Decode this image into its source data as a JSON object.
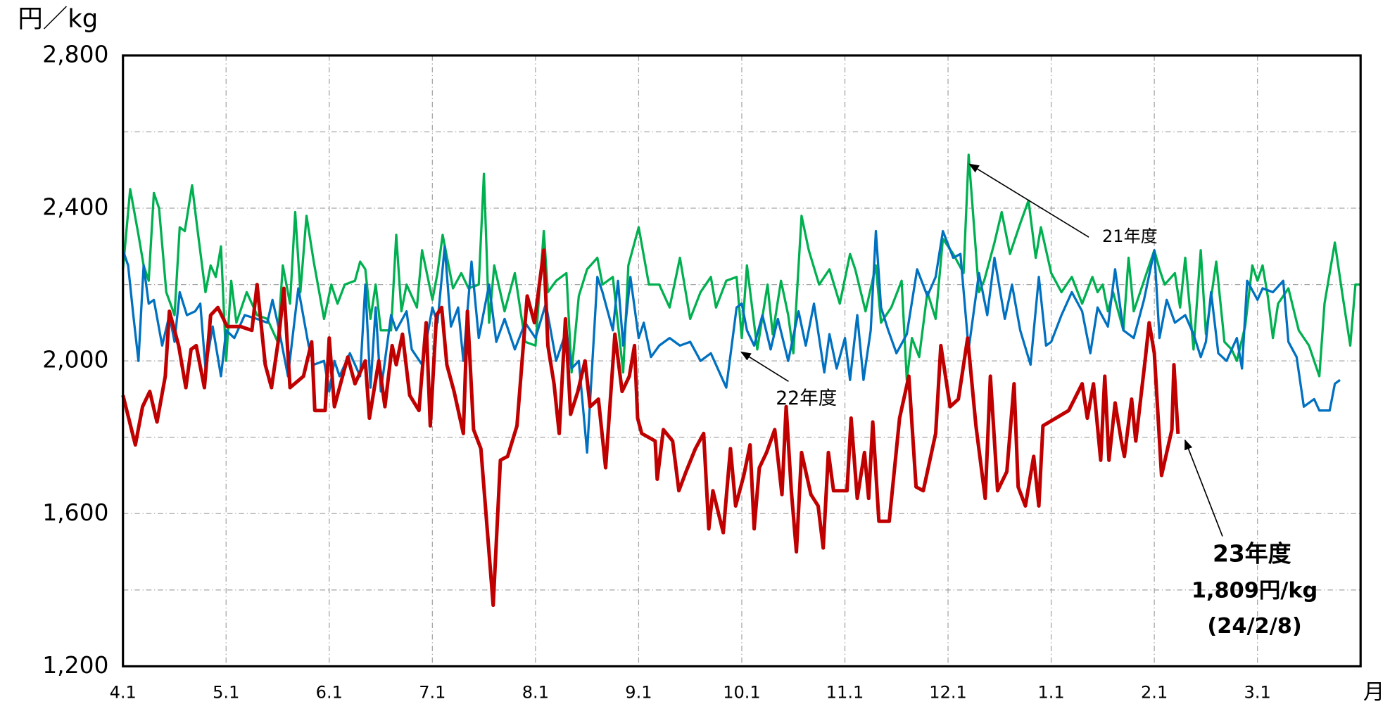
{
  "chart_data": {
    "type": "line",
    "y_label": "円／kg",
    "x_label": "月",
    "xlim": [
      0,
      12
    ],
    "xticks": [
      {
        "value": 0,
        "label": "4.1"
      },
      {
        "value": 1,
        "label": "5.1"
      },
      {
        "value": 2,
        "label": "6.1"
      },
      {
        "value": 3,
        "label": "7.1"
      },
      {
        "value": 4,
        "label": "8.1"
      },
      {
        "value": 5,
        "label": "9.1"
      },
      {
        "value": 6,
        "label": "10.1"
      },
      {
        "value": 7,
        "label": "11.1"
      },
      {
        "value": 8,
        "label": "12.1"
      },
      {
        "value": 9,
        "label": "1.1"
      },
      {
        "value": 10,
        "label": "2.1"
      },
      {
        "value": 11,
        "label": "3.1"
      }
    ],
    "ylim": [
      1200,
      2800
    ],
    "yticks": [
      {
        "value": 1200,
        "label": "1,200"
      },
      {
        "value": 1600,
        "label": "1,600"
      },
      {
        "value": 2000,
        "label": "2,000"
      },
      {
        "value": 2400,
        "label": "2,400"
      },
      {
        "value": 2800,
        "label": "2,800"
      }
    ],
    "minor_yticks": [
      1400,
      1800,
      2200,
      2600
    ],
    "grid": true,
    "series": [
      {
        "name": "21年度",
        "color": "#00b050",
        "x": [
          0,
          0.07,
          0.15,
          0.2,
          0.25,
          0.3,
          0.35,
          0.42,
          0.5,
          0.55,
          0.6,
          0.67,
          0.72,
          0.8,
          0.85,
          0.9,
          0.95,
          1.0,
          1.05,
          1.1,
          1.2,
          1.3,
          1.4,
          1.5,
          1.55,
          1.62,
          1.67,
          1.72,
          1.78,
          1.85,
          1.95,
          2.02,
          2.08,
          2.15,
          2.25,
          2.3,
          2.35,
          2.4,
          2.45,
          2.5,
          2.6,
          2.65,
          2.7,
          2.75,
          2.85,
          2.9,
          3.0,
          3.05,
          3.1,
          3.2,
          3.28,
          3.35,
          3.45,
          3.5,
          3.55,
          3.6,
          3.7,
          3.8,
          3.9,
          4.0,
          4.08,
          4.12,
          4.2,
          4.3,
          4.35,
          4.42,
          4.5,
          4.6,
          4.65,
          4.75,
          4.85,
          4.9,
          5.0,
          5.1,
          5.2,
          5.3,
          5.4,
          5.5,
          5.6,
          5.7,
          5.75,
          5.85,
          5.95,
          6.0,
          6.05,
          6.15,
          6.25,
          6.3,
          6.38,
          6.45,
          6.5,
          6.58,
          6.65,
          6.75,
          6.85,
          6.95,
          7.05,
          7.1,
          7.2,
          7.3,
          7.35,
          7.45,
          7.55,
          7.6,
          7.65,
          7.72,
          7.8,
          7.88,
          7.95,
          8.05,
          8.15,
          8.2,
          8.3,
          8.35,
          8.45,
          8.52,
          8.6,
          8.7,
          8.78,
          8.85,
          8.9,
          9.0,
          9.1,
          9.2,
          9.3,
          9.4,
          9.45,
          9.5,
          9.55,
          9.6,
          9.7,
          9.75,
          9.8,
          9.9,
          10.0,
          10.05,
          10.1,
          10.2,
          10.25,
          10.3,
          10.38,
          10.45,
          10.5,
          10.6,
          10.68,
          10.75,
          10.8,
          10.88,
          10.95,
          11.0,
          11.05,
          11.1,
          11.15,
          11.2,
          11.3,
          11.4,
          11.5,
          11.6,
          11.65,
          11.75,
          11.82,
          11.9,
          11.95,
          12.0
        ],
        "values": [
          2240,
          2450,
          2330,
          2250,
          2210,
          2440,
          2400,
          2180,
          2120,
          2350,
          2340,
          2460,
          2350,
          2180,
          2250,
          2220,
          2300,
          2000,
          2210,
          2100,
          2180,
          2120,
          2110,
          2050,
          2250,
          2150,
          2390,
          2180,
          2380,
          2260,
          2110,
          2200,
          2150,
          2200,
          2210,
          2260,
          2240,
          2110,
          2200,
          2080,
          2080,
          2330,
          2130,
          2200,
          2140,
          2290,
          2160,
          2230,
          2330,
          2190,
          2230,
          2190,
          2200,
          2490,
          2100,
          2250,
          2130,
          2230,
          2050,
          2040,
          2340,
          2180,
          2210,
          2230,
          1970,
          2170,
          2240,
          2270,
          2200,
          2220,
          1970,
          2250,
          2350,
          2200,
          2200,
          2140,
          2270,
          2110,
          2180,
          2220,
          2140,
          2210,
          2220,
          2060,
          2250,
          2030,
          2200,
          2070,
          2210,
          2120,
          2020,
          2380,
          2290,
          2200,
          2240,
          2150,
          2280,
          2240,
          2130,
          2250,
          2100,
          2140,
          2210,
          1950,
          2060,
          2010,
          2180,
          2110,
          2320,
          2280,
          2230,
          2540,
          2180,
          2210,
          2310,
          2390,
          2280,
          2360,
          2420,
          2270,
          2350,
          2230,
          2180,
          2220,
          2150,
          2220,
          2180,
          2200,
          2130,
          2180,
          2080,
          2270,
          2130,
          2210,
          2290,
          2240,
          2200,
          2230,
          2140,
          2270,
          2030,
          2290,
          2070,
          2260,
          2050,
          2030,
          2000,
          2090,
          2250,
          2210,
          2250,
          2170,
          2060,
          2150,
          2190,
          2080,
          2040,
          1960,
          2150,
          2310,
          2180,
          2040,
          2200,
          2200
        ]
      },
      {
        "name": "22年度",
        "color": "#0070c0",
        "x": [
          0,
          0.05,
          0.1,
          0.15,
          0.2,
          0.25,
          0.3,
          0.38,
          0.45,
          0.5,
          0.55,
          0.62,
          0.7,
          0.75,
          0.8,
          0.87,
          0.95,
          1.0,
          1.08,
          1.18,
          1.3,
          1.4,
          1.45,
          1.5,
          1.6,
          1.7,
          1.8,
          1.85,
          1.95,
          2.0,
          2.05,
          2.1,
          2.2,
          2.3,
          2.35,
          2.4,
          2.45,
          2.5,
          2.6,
          2.65,
          2.75,
          2.8,
          2.9,
          3.0,
          3.05,
          3.12,
          3.18,
          3.25,
          3.3,
          3.38,
          3.45,
          3.55,
          3.62,
          3.7,
          3.8,
          3.9,
          4.0,
          4.1,
          4.2,
          4.3,
          4.35,
          4.42,
          4.5,
          4.6,
          4.65,
          4.75,
          4.8,
          4.85,
          4.92,
          5.0,
          5.05,
          5.12,
          5.2,
          5.3,
          5.4,
          5.5,
          5.6,
          5.7,
          5.85,
          5.95,
          6.0,
          6.05,
          6.12,
          6.2,
          6.28,
          6.35,
          6.45,
          6.55,
          6.62,
          6.7,
          6.8,
          6.85,
          6.92,
          7.0,
          7.05,
          7.12,
          7.18,
          7.25,
          7.3,
          7.35,
          7.42,
          7.5,
          7.6,
          7.7,
          7.8,
          7.88,
          7.95,
          8.05,
          8.12,
          8.2,
          8.3,
          8.38,
          8.45,
          8.55,
          8.62,
          8.7,
          8.8,
          8.88,
          8.95,
          9.0,
          9.1,
          9.2,
          9.3,
          9.38,
          9.45,
          9.55,
          9.62,
          9.7,
          9.8,
          9.9,
          10.0,
          10.05,
          10.12,
          10.2,
          10.3,
          10.38,
          10.45,
          10.5,
          10.55,
          10.62,
          10.7,
          10.8,
          10.85,
          10.9,
          11.0,
          11.05,
          11.15,
          11.25,
          11.3,
          11.38,
          11.45,
          11.55,
          11.6,
          11.7,
          11.75,
          11.8
        ],
        "values": [
          2290,
          2250,
          2120,
          2000,
          2250,
          2150,
          2160,
          2040,
          2120,
          2050,
          2180,
          2120,
          2130,
          2150,
          1980,
          2090,
          1960,
          2080,
          2060,
          2120,
          2110,
          2100,
          2160,
          2100,
          1960,
          2190,
          2040,
          1990,
          2000,
          1920,
          2000,
          1960,
          2020,
          1960,
          2200,
          1930,
          2140,
          1920,
          2120,
          2080,
          2130,
          2030,
          1990,
          2140,
          2100,
          2300,
          2090,
          2140,
          2000,
          2260,
          2060,
          2200,
          2050,
          2110,
          2030,
          2100,
          2060,
          2150,
          2000,
          2080,
          1980,
          2000,
          1760,
          2220,
          2180,
          2080,
          2210,
          2040,
          2220,
          2060,
          2100,
          2010,
          2040,
          2060,
          2040,
          2050,
          2000,
          2020,
          1930,
          2140,
          2150,
          2080,
          2040,
          2120,
          2030,
          2110,
          2000,
          2130,
          2040,
          2150,
          1970,
          2070,
          1980,
          2060,
          1950,
          2120,
          1950,
          2080,
          2340,
          2140,
          2080,
          2020,
          2070,
          2240,
          2170,
          2220,
          2340,
          2270,
          2280,
          2030,
          2230,
          2120,
          2270,
          2110,
          2200,
          2080,
          1990,
          2220,
          2040,
          2050,
          2120,
          2180,
          2130,
          2020,
          2140,
          2090,
          2240,
          2080,
          2060,
          2160,
          2290,
          2060,
          2160,
          2100,
          2120,
          2070,
          2010,
          2050,
          2180,
          2020,
          2000,
          2060,
          1980,
          2210,
          2160,
          2190,
          2180,
          2210,
          2050,
          2010,
          1880,
          1900,
          1870,
          1870,
          1940,
          1950
        ]
      },
      {
        "name": "23年度",
        "color": "#c00000",
        "x": [
          0,
          0.12,
          0.19,
          0.26,
          0.33,
          0.41,
          0.45,
          0.54,
          0.61,
          0.66,
          0.71,
          0.79,
          0.85,
          0.92,
          1.01,
          1.14,
          1.25,
          1.3,
          1.38,
          1.44,
          1.51,
          1.56,
          1.62,
          1.75,
          1.83,
          1.86,
          1.96,
          2.0,
          2.05,
          2.18,
          2.25,
          2.35,
          2.39,
          2.48,
          2.54,
          2.61,
          2.65,
          2.71,
          2.78,
          2.87,
          2.94,
          2.98,
          3.04,
          3.09,
          3.14,
          3.21,
          3.3,
          3.34,
          3.4,
          3.47,
          3.59,
          3.66,
          3.73,
          3.82,
          3.92,
          3.99,
          4.08,
          4.12,
          4.18,
          4.23,
          4.29,
          4.34,
          4.41,
          4.48,
          4.53,
          4.61,
          4.68,
          4.77,
          4.84,
          4.91,
          4.96,
          4.99,
          5.03,
          5.16,
          5.18,
          5.24,
          5.33,
          5.39,
          5.46,
          5.55,
          5.63,
          5.68,
          5.72,
          5.82,
          5.89,
          5.94,
          6.02,
          6.08,
          6.12,
          6.17,
          6.24,
          6.32,
          6.39,
          6.43,
          6.48,
          6.53,
          6.58,
          6.67,
          6.74,
          6.79,
          6.84,
          6.89,
          7.02,
          7.06,
          7.12,
          7.19,
          7.23,
          7.27,
          7.33,
          7.43,
          7.53,
          7.62,
          7.69,
          7.76,
          7.88,
          7.93,
          8.02,
          8.1,
          8.19,
          8.27,
          8.36,
          8.41,
          8.48,
          8.57,
          8.64,
          8.68,
          8.75,
          8.83,
          8.88,
          8.92,
          9.17,
          9.3,
          9.35,
          9.41,
          9.48,
          9.52,
          9.56,
          9.62,
          9.68,
          9.71,
          9.78,
          9.82,
          9.91,
          9.95,
          10.0,
          10.07,
          10.17,
          10.19,
          10.23
        ],
        "values": [
          1910,
          1780,
          1880,
          1920,
          1840,
          1960,
          2130,
          2040,
          1930,
          2030,
          2040,
          1930,
          2120,
          2140,
          2090,
          2090,
          2080,
          2200,
          1990,
          1930,
          2060,
          2190,
          1930,
          1960,
          2050,
          1870,
          1870,
          2060,
          1880,
          2010,
          1940,
          2000,
          1850,
          2000,
          1880,
          2040,
          1990,
          2070,
          1910,
          1870,
          2100,
          1830,
          2120,
          2140,
          1990,
          1920,
          1810,
          2130,
          1820,
          1770,
          1360,
          1740,
          1750,
          1830,
          2170,
          2100,
          2290,
          2040,
          1940,
          1810,
          2110,
          1860,
          1920,
          2000,
          1880,
          1900,
          1720,
          2070,
          1920,
          1960,
          2040,
          1850,
          1810,
          1790,
          1690,
          1820,
          1790,
          1660,
          1710,
          1770,
          1810,
          1560,
          1660,
          1550,
          1770,
          1620,
          1700,
          1780,
          1560,
          1720,
          1760,
          1820,
          1650,
          1880,
          1660,
          1500,
          1760,
          1650,
          1620,
          1510,
          1760,
          1660,
          1660,
          1850,
          1640,
          1760,
          1640,
          1840,
          1580,
          1580,
          1850,
          1960,
          1670,
          1660,
          1810,
          2040,
          1880,
          1900,
          2060,
          1830,
          1640,
          1960,
          1660,
          1710,
          1940,
          1670,
          1620,
          1750,
          1620,
          1830,
          1870,
          1940,
          1850,
          1940,
          1740,
          1960,
          1740,
          1890,
          1790,
          1750,
          1900,
          1790,
          2000,
          2100,
          2020,
          1700,
          1820,
          1990,
          1809
        ],
        "annotations": [
          "1,809円/kg",
          "(24/2/8)"
        ]
      }
    ]
  }
}
